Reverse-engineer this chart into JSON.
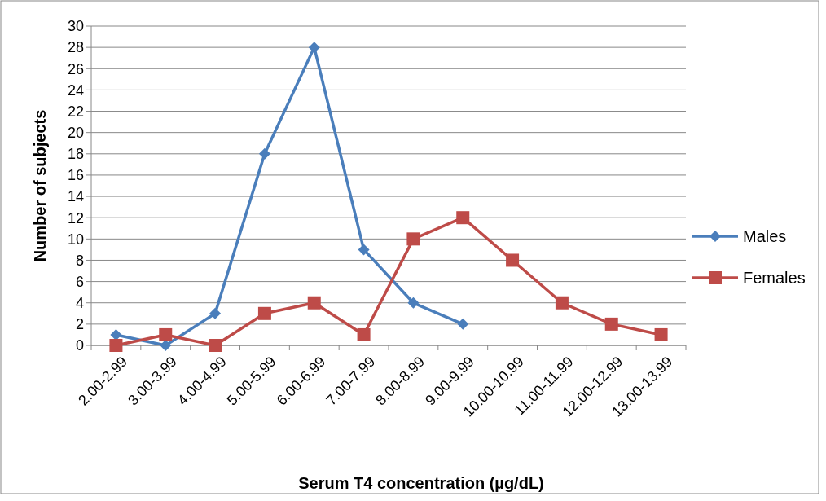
{
  "chart_data": {
    "type": "line",
    "xlabel": "Serum T4 concentration (µg/dL)",
    "ylabel": "Number of subjects",
    "categories": [
      "2.00-2.99",
      "3.00-3.99",
      "4.00-4.99",
      "5.00-5.99",
      "6.00-6.99",
      "7.00-7.99",
      "8.00-8.99",
      "9.00-9.99",
      "10.00-10.99",
      "11.00-11.99",
      "12.00-12.99",
      "13.00-13.99"
    ],
    "series": [
      {
        "name": "Males",
        "color": "#4a7ebb",
        "marker": "diamond",
        "values": [
          1,
          0,
          3,
          18,
          28,
          9,
          4,
          2,
          null,
          null,
          null,
          null
        ]
      },
      {
        "name": "Females",
        "color": "#be4b48",
        "marker": "square",
        "values": [
          0,
          1,
          0,
          3,
          4,
          1,
          10,
          12,
          8,
          4,
          2,
          1
        ]
      }
    ],
    "ylim": [
      0,
      30
    ],
    "yticks": [
      0,
      2,
      4,
      6,
      8,
      10,
      12,
      14,
      16,
      18,
      20,
      22,
      24,
      26,
      28,
      30
    ],
    "grid": "y",
    "legend": "right",
    "line_style": "solid"
  }
}
